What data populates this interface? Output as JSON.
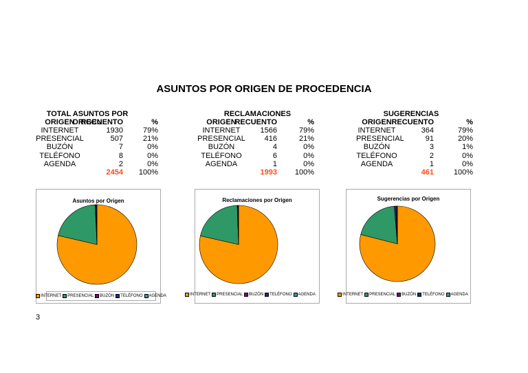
{
  "title": "ASUNTOS POR ORIGEN DE PROCEDENCIA",
  "page_number": "3",
  "headers": {
    "origen": "ORIGEN",
    "recuento": "RECUENTO",
    "pct": "%"
  },
  "colors": {
    "INTERNET": "#ff9900",
    "PRESENCIAL": "#2e9966",
    "BUZÓN": "#800080",
    "TELÉFONO": "#1f2f7a",
    "AGENDA": "#339999",
    "total_highlight": "#ff4a1c"
  },
  "tables": [
    {
      "title": "TOTAL ASUNTOS POR ORIGEN",
      "rows": [
        {
          "origen": "INTERNET",
          "recuento": "1930",
          "pct": "79%"
        },
        {
          "origen": "PRESENCIAL",
          "recuento": "507",
          "pct": "21%"
        },
        {
          "origen": "BUZÓN",
          "recuento": "7",
          "pct": "0%"
        },
        {
          "origen": "TELÉFONO",
          "recuento": "8",
          "pct": "0%"
        },
        {
          "origen": "AGENDA",
          "recuento": "2",
          "pct": "0%"
        }
      ],
      "total": "2454",
      "total_pct": "100%"
    },
    {
      "title": "RECLAMACIONES",
      "rows": [
        {
          "origen": "INTERNET",
          "recuento": "1566",
          "pct": "79%"
        },
        {
          "origen": "PRESENCIAL",
          "recuento": "416",
          "pct": "21%"
        },
        {
          "origen": "BUZÓN",
          "recuento": "4",
          "pct": "0%"
        },
        {
          "origen": "TELÉFONO",
          "recuento": "6",
          "pct": "0%"
        },
        {
          "origen": "AGENDA",
          "recuento": "1",
          "pct": "0%"
        }
      ],
      "total": "1993",
      "total_pct": "100%"
    },
    {
      "title": "SUGERENCIAS",
      "rows": [
        {
          "origen": "INTERNET",
          "recuento": "364",
          "pct": "79%"
        },
        {
          "origen": "PRESENCIAL",
          "recuento": "91",
          "pct": "20%"
        },
        {
          "origen": "BUZÓN",
          "recuento": "3",
          "pct": "1%"
        },
        {
          "origen": "TELÉFONO",
          "recuento": "2",
          "pct": "0%"
        },
        {
          "origen": "AGENDA",
          "recuento": "1",
          "pct": "0%"
        }
      ],
      "total": "461",
      "total_pct": "100%"
    }
  ],
  "chart_data": [
    {
      "type": "pie",
      "title": "Asuntos por Origen",
      "labels": [
        "INTERNET",
        "PRESENCIAL",
        "BUZÓN",
        "TELÉFONO",
        "AGENDA"
      ],
      "values": [
        1930,
        507,
        7,
        8,
        2
      ],
      "legend": "bottom"
    },
    {
      "type": "pie",
      "title": "Reclamaciones por Origen",
      "labels": [
        "INTERNET",
        "PRESENCIAL",
        "BUZÓN",
        "TELÉFONO",
        "AGENDA"
      ],
      "values": [
        1566,
        416,
        4,
        6,
        1
      ],
      "legend": "bottom"
    },
    {
      "type": "pie",
      "title": "Sugerencias por Origen",
      "labels": [
        "INTERNET",
        "PRESENCIAL",
        "BUZÓN",
        "TELÉFONO",
        "AGENDA"
      ],
      "values": [
        364,
        91,
        3,
        2,
        1
      ],
      "legend": "bottom"
    }
  ]
}
